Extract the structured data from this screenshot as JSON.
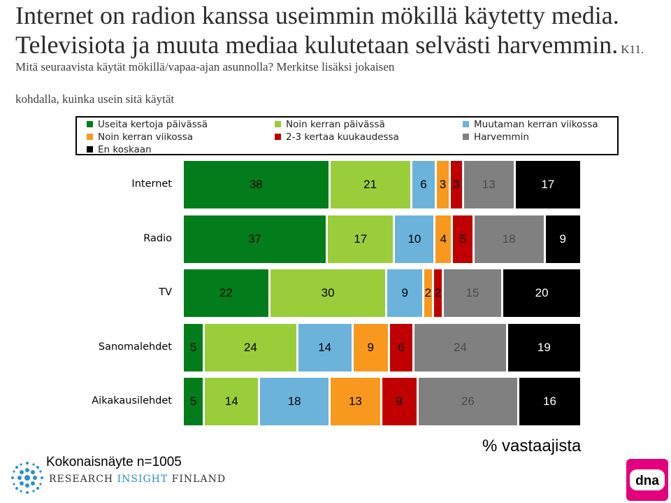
{
  "title": {
    "main": "Internet on radion kanssa useimmin mökillä käytetty media. Televisiota ja muuta mediaa kulutetaan selvästi harvemmin.",
    "question_a": "K11. Mitä seuraavista käytät mökillä/vapaa-ajan asunnolla? Merkitse lisäksi jokaisen",
    "question_b": "kohdalla, kuinka usein sitä käytät"
  },
  "footer": {
    "sample": "Kokonaisnäyte n=1005",
    "unit": "% vastaajista"
  },
  "logos": {
    "rif_part1": "RESEARCH ",
    "rif_part2": "INSIGHT",
    "rif_part3": " FINLAND",
    "dna": "dna"
  },
  "colors": {
    "useita_kertoja_paivassa": "#037d1b",
    "noin_kerran_paivassa": "#9acd3a",
    "muutaman_kerran_viikossa": "#6bb3db",
    "noin_kerran_viikossa": "#f8991d",
    "2_3_kertaa_kuukaudessa": "#c00000",
    "harvemmin": "#808080",
    "en_koskaan": "#000000"
  },
  "chart_data": {
    "type": "bar",
    "orientation": "horizontal",
    "stacked": true,
    "categories": [
      "Internet",
      "Radio",
      "TV",
      "Sanomalehdet",
      "Aikakausilehdet"
    ],
    "series": [
      {
        "name": "Useita kertoja päivässä",
        "values": [
          38,
          37,
          22,
          5,
          5
        ]
      },
      {
        "name": "Noin kerran päivässä",
        "values": [
          21,
          17,
          30,
          24,
          14
        ]
      },
      {
        "name": "Muutaman kerran viikossa",
        "values": [
          6,
          10,
          9,
          14,
          18
        ]
      },
      {
        "name": "Noin kerran viikossa",
        "values": [
          3,
          4,
          2,
          9,
          13
        ]
      },
      {
        "name": "2-3 kertaa kuukaudessa",
        "values": [
          3,
          5,
          2,
          6,
          9
        ]
      },
      {
        "name": "Harvemmin",
        "values": [
          13,
          18,
          15,
          24,
          26
        ]
      },
      {
        "name": "En koskaan",
        "values": [
          17,
          9,
          20,
          19,
          16
        ]
      }
    ],
    "legend_position": "top",
    "data_labels": true,
    "grid": false
  }
}
